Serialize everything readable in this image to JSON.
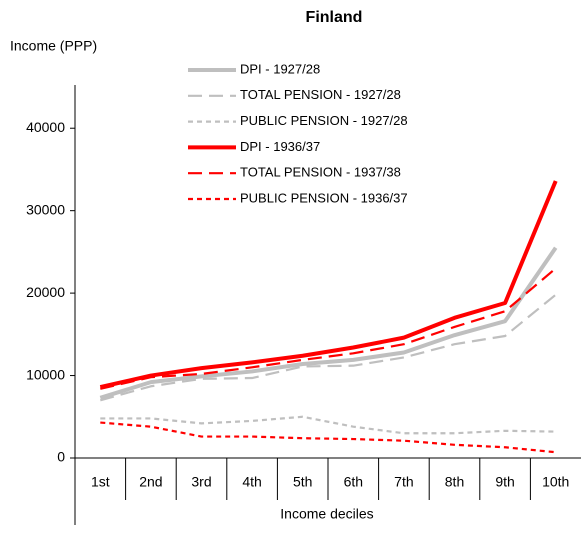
{
  "chart_data": {
    "type": "line",
    "title": "Finland",
    "y_label": "Income  (PPP)",
    "x_label": "Income deciles",
    "categories": [
      "1st",
      "2nd",
      "3rd",
      "4th",
      "5th",
      "6th",
      "7th",
      "8th",
      "9th",
      "10th"
    ],
    "ylim": [
      0,
      45000
    ],
    "yticks": [
      0,
      10000,
      20000,
      30000,
      40000
    ],
    "grid": false,
    "legend": "top",
    "series": [
      {
        "name": "DPI  - 1927/28",
        "color": "#bfbfbf",
        "style": "solid",
        "values": [
          7300,
          9200,
          9900,
          10500,
          11400,
          11900,
          12800,
          14900,
          16600,
          25500
        ]
      },
      {
        "name": "TOTAL PENSION  - 1927/28",
        "color": "#bfbfbf",
        "style": "dashed",
        "values": [
          7000,
          8700,
          9600,
          9700,
          11100,
          11200,
          12200,
          13800,
          14800,
          19800
        ]
      },
      {
        "name": "PUBLIC PENSION  - 1927/28",
        "color": "#bfbfbf",
        "style": "dotted",
        "values": [
          4800,
          4800,
          4200,
          4500,
          5000,
          3800,
          3000,
          3000,
          3300,
          3200
        ]
      },
      {
        "name": "DPI  - 1936/37",
        "color": "#ff0000",
        "style": "solid",
        "values": [
          8600,
          10000,
          10900,
          11600,
          12400,
          13400,
          14600,
          17000,
          18800,
          33600
        ]
      },
      {
        "name": "TOTAL PENSION  - 1937/38",
        "color": "#ff0000",
        "style": "dashed",
        "values": [
          8400,
          9800,
          10200,
          11000,
          11900,
          12700,
          13800,
          15900,
          17800,
          23000
        ]
      },
      {
        "name": "PUBLIC PENSION  - 1936/37",
        "color": "#ff0000",
        "style": "dotted",
        "values": [
          4300,
          3800,
          2600,
          2600,
          2400,
          2300,
          2100,
          1600,
          1300,
          700
        ]
      }
    ]
  }
}
